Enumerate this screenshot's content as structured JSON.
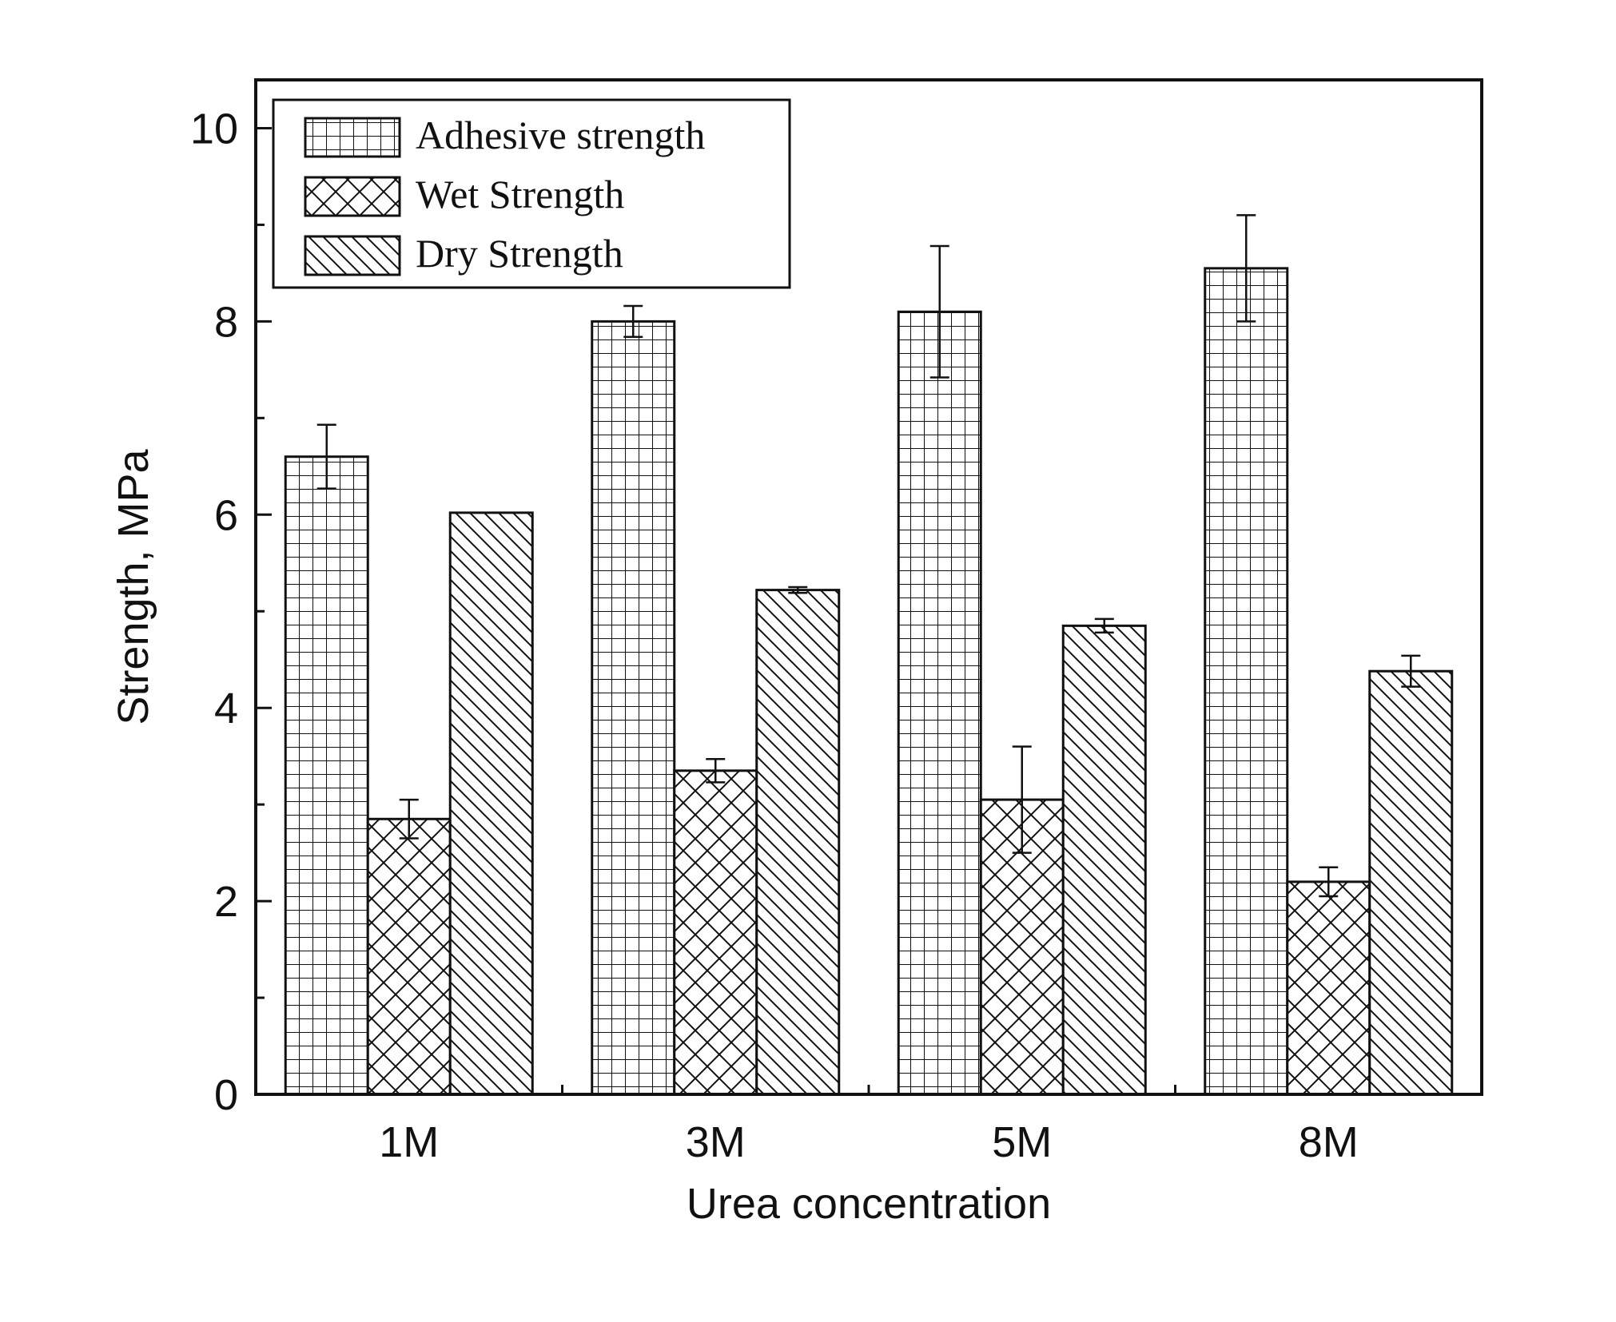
{
  "chart_data": {
    "type": "bar",
    "categories": [
      "1M",
      "3M",
      "5M",
      "8M"
    ],
    "series": [
      {
        "name": "Adhesive strength",
        "pattern": "grid",
        "values": [
          6.6,
          8.0,
          8.1,
          8.55
        ],
        "errors": [
          0.33,
          0.16,
          0.68,
          0.55
        ]
      },
      {
        "name": "Wet Strength",
        "pattern": "crosshatch",
        "values": [
          2.85,
          3.35,
          3.05,
          2.2
        ],
        "errors": [
          0.2,
          0.12,
          0.55,
          0.15
        ]
      },
      {
        "name": "Dry Strength",
        "pattern": "diagonal",
        "values": [
          6.02,
          5.22,
          4.85,
          4.38
        ],
        "errors": [
          0.0,
          0.03,
          0.07,
          0.16
        ]
      }
    ],
    "xlabel": "Urea concentration",
    "ylabel": "Strength, MPa",
    "ylim": [
      0,
      10.5
    ],
    "yticks": [
      "0",
      "2",
      "4",
      "6",
      "8",
      "10"
    ],
    "legend_position": "top-left",
    "grid": false,
    "colors": {
      "axis": "#111111",
      "fill": "#ffffff"
    }
  }
}
